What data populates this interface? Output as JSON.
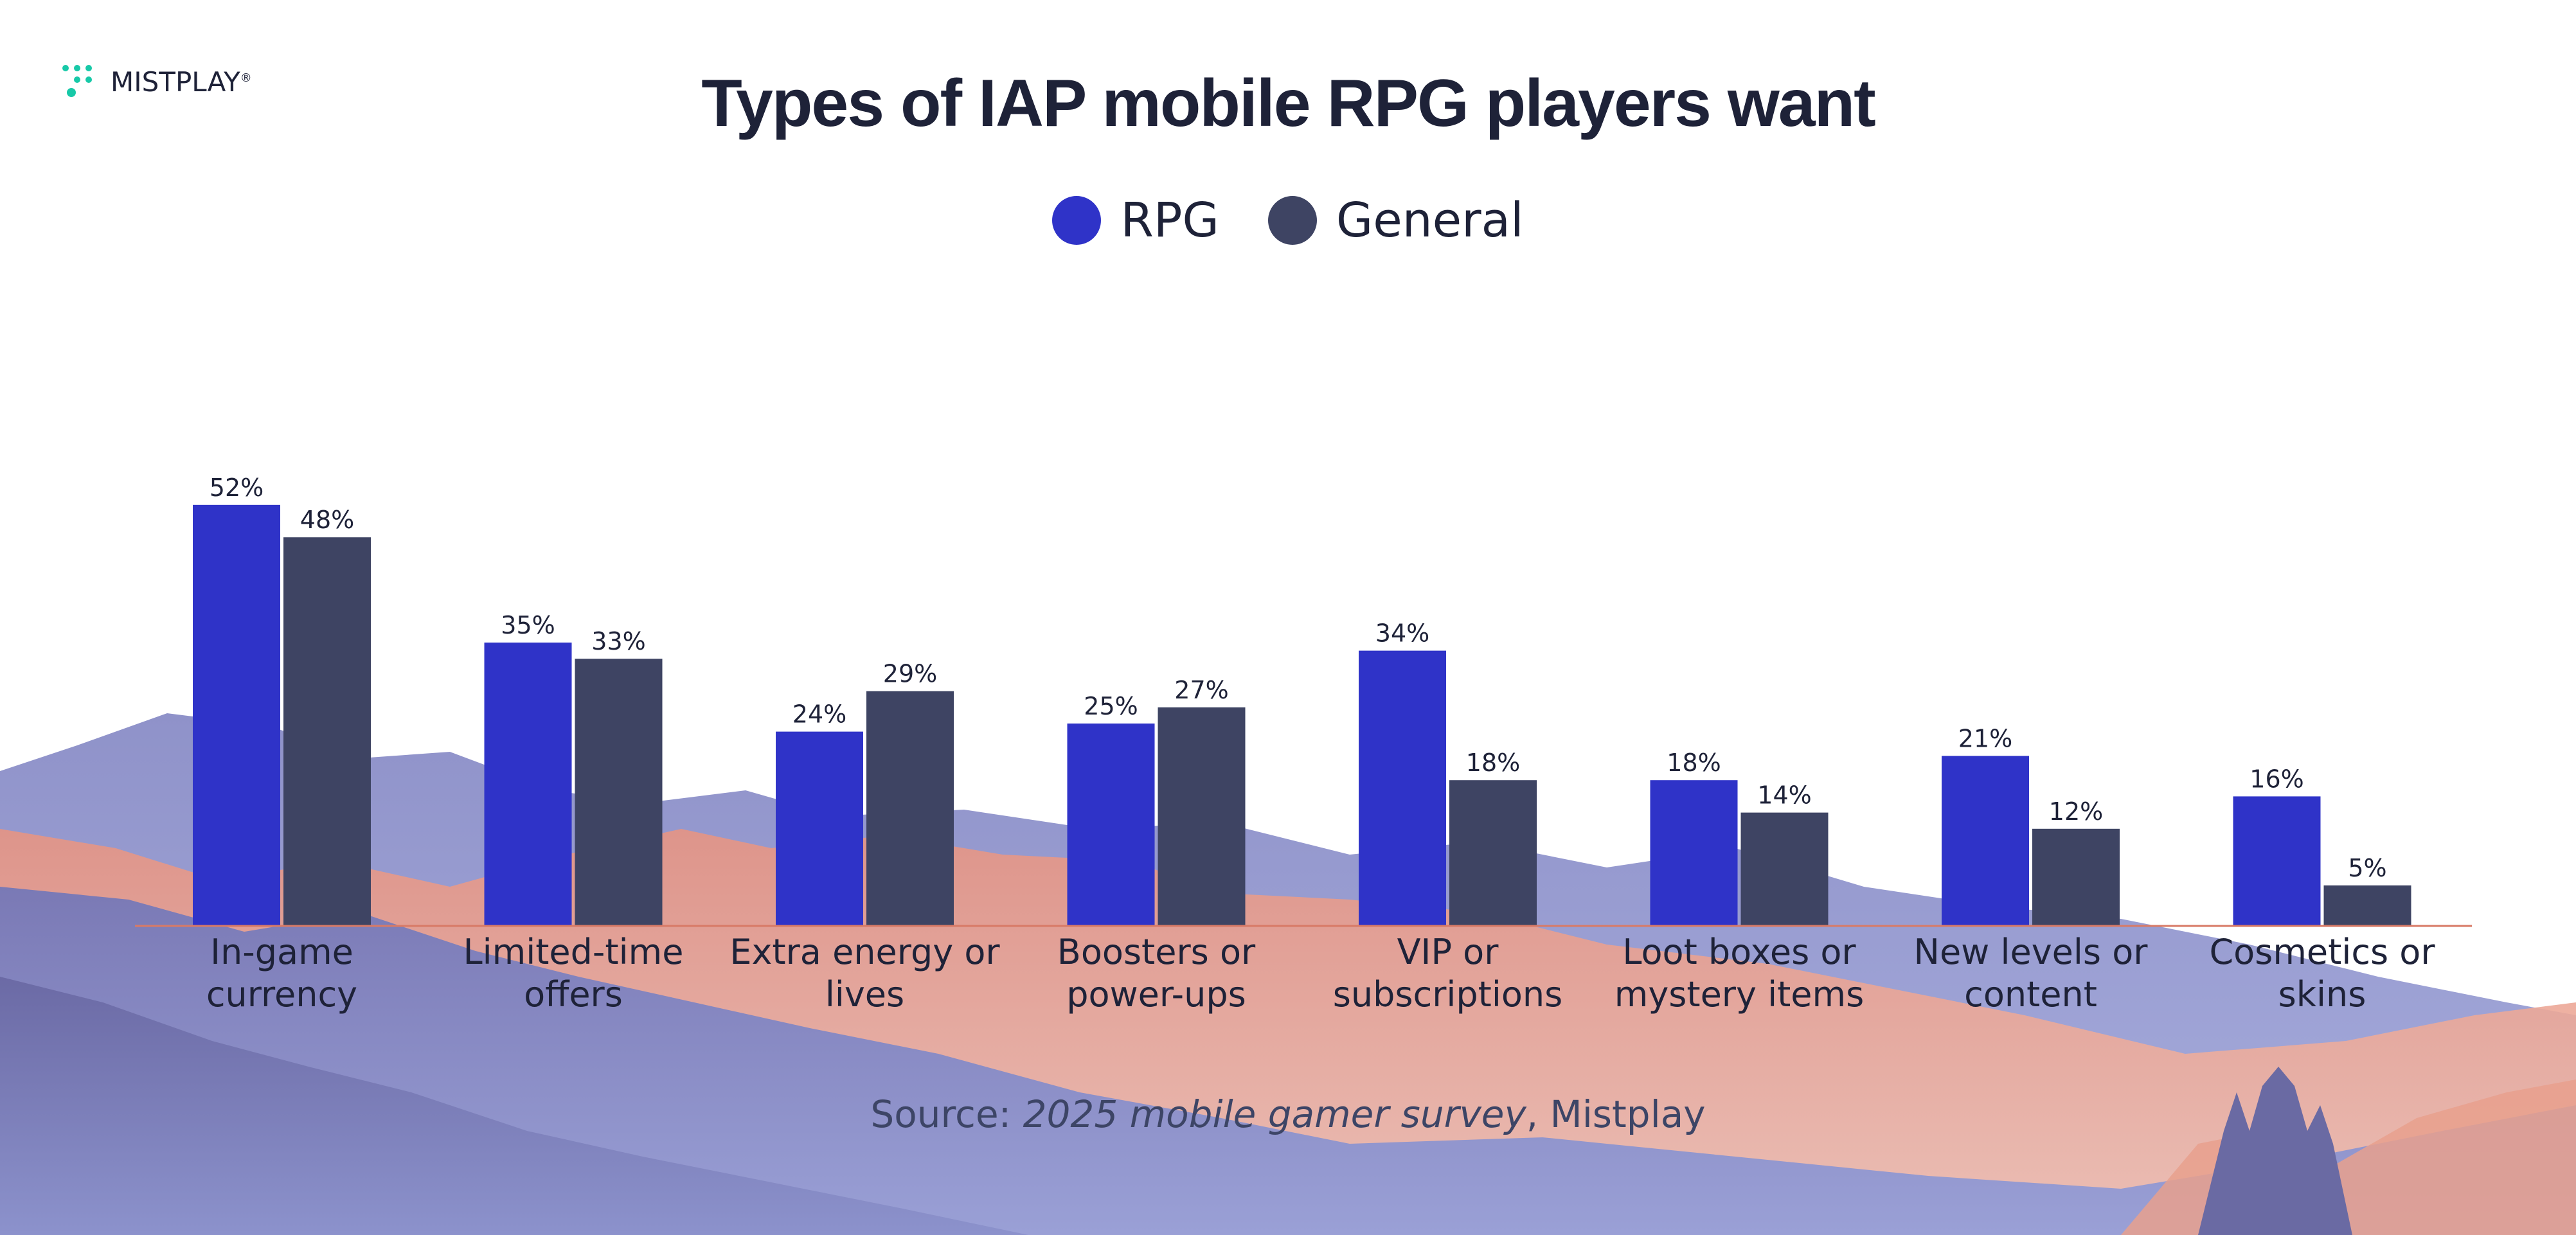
{
  "brand": {
    "name": "MISTPLAY",
    "mark": "®",
    "accent": "#17c9a8"
  },
  "title": "Types of IAP mobile RPG players want",
  "source": {
    "prefix": "Source: ",
    "survey": "2025 mobile gamer survey",
    "suffix": ", Mistplay"
  },
  "colors": {
    "rpg": "#2f33c8",
    "general": "#3e4463",
    "text": "#1e2238",
    "baseline": "#d87a66"
  },
  "chart_data": {
    "type": "bar",
    "title": "Types of IAP mobile RPG players want",
    "xlabel": "",
    "ylabel": "",
    "ylim": [
      0,
      100
    ],
    "grid": false,
    "legend": "top-center",
    "categories": [
      "In-game currency",
      "Limited-time offers",
      "Extra energy or lives",
      "Boosters or power-ups",
      "VIP or subscriptions",
      "Loot boxes or mystery items",
      "New levels or content",
      "Cosmetics or skins"
    ],
    "category_lines": [
      [
        "In-game",
        "currency"
      ],
      [
        "Limited-time",
        "offers"
      ],
      [
        "Extra energy or",
        "lives"
      ],
      [
        "Boosters or",
        "power-ups"
      ],
      [
        "VIP or",
        "subscriptions"
      ],
      [
        "Loot boxes or",
        "mystery items"
      ],
      [
        "New levels or",
        "content"
      ],
      [
        "Cosmetics or",
        "skins"
      ]
    ],
    "value_suffix": "%",
    "series": [
      {
        "name": "RPG",
        "color": "#2f33c8",
        "values": [
          52,
          35,
          24,
          25,
          34,
          18,
          21,
          16
        ]
      },
      {
        "name": "General",
        "color": "#3e4463",
        "values": [
          48,
          33,
          29,
          27,
          18,
          14,
          12,
          5
        ]
      }
    ]
  }
}
